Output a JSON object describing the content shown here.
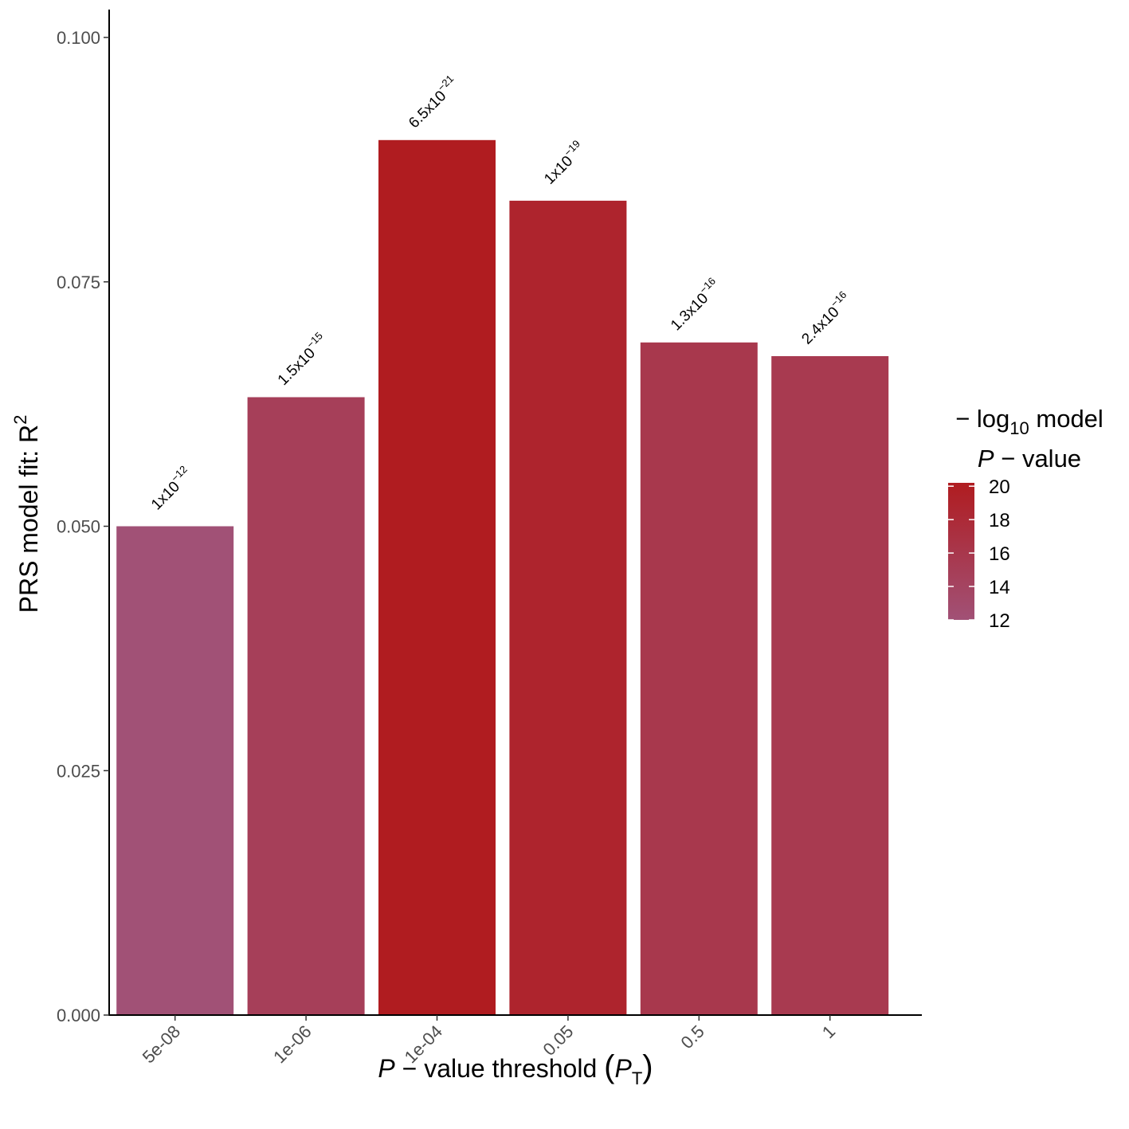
{
  "chart_data": {
    "type": "bar",
    "categories": [
      "5e-08",
      "1e-06",
      "1e-04",
      "0.05",
      "0.5",
      "1"
    ],
    "values": [
      0.05,
      0.0632,
      0.0895,
      0.0833,
      0.0688,
      0.0674
    ],
    "neg_log10_p": [
      12.0,
      14.8,
      20.2,
      19.0,
      15.9,
      15.6
    ],
    "bar_labels": [
      {
        "base": "1x10",
        "exp": "−12"
      },
      {
        "base": "1.5x10",
        "exp": "−15"
      },
      {
        "base": "6.5x10",
        "exp": "−21"
      },
      {
        "base": "1x10",
        "exp": "−19"
      },
      {
        "base": "1.3x10",
        "exp": "−16"
      },
      {
        "base": "2.4x10",
        "exp": "−16"
      }
    ],
    "ylim": [
      0,
      0.103
    ],
    "yticks": [
      "0.000",
      "0.025",
      "0.050",
      "0.075",
      "0.100"
    ],
    "ylabel": {
      "text": "PRS model fit:  R",
      "sup": "2"
    },
    "xlabel": {
      "p": "P",
      "mid": " − value threshold ",
      "open": "(",
      "pt": "P",
      "sub": "T",
      "close": ")"
    },
    "legend": {
      "title_line1": {
        "pre": "− log",
        "sub": "10",
        "post": " model"
      },
      "title_line2": {
        "p": "P",
        "rest": " − value"
      },
      "range": [
        12,
        20.2
      ],
      "ticks": [
        "20",
        "18",
        "16",
        "14",
        "12"
      ],
      "color_low": "#a15176",
      "color_high": "#b01c20",
      "position": "right"
    },
    "grid": false
  }
}
